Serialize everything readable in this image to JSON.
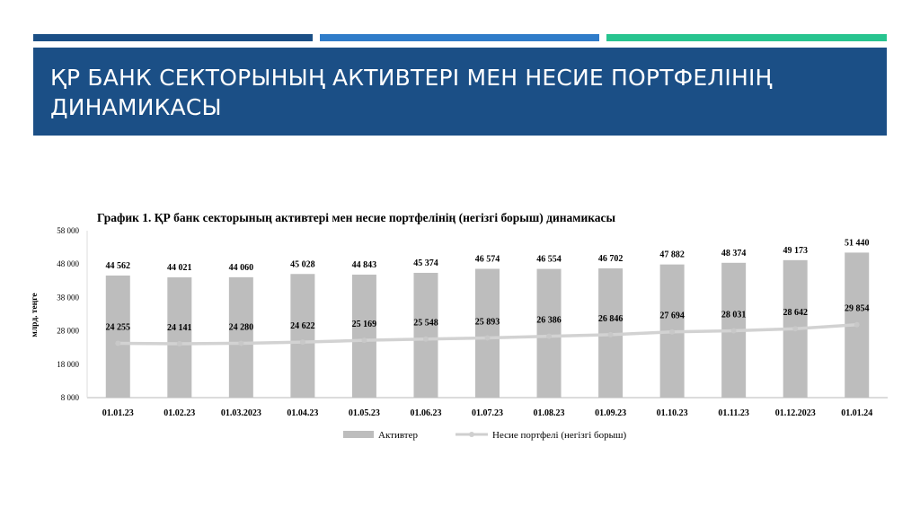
{
  "slide": {
    "title": "ҚР БАНК СЕКТОРЫНЫҢ АКТИВТЕРІ МЕН НЕСИЕ ПОРТФЕЛІНІҢ ДИНАМИКАСЫ",
    "stripe_colors": [
      "#1b4f86",
      "#2f7cc9",
      "#27c48f"
    ],
    "title_bg": "#1b4f86"
  },
  "chart_data": {
    "type": "bar",
    "title": "График 1. ҚР банк секторының активтері мен несие портфелінің (негізгі борыш) динамикасы",
    "ylabel": "млрд. теңге",
    "xlabel": "",
    "ylim": [
      8000,
      58000
    ],
    "yticks": [
      "8 000",
      "18 000",
      "28 000",
      "38 000",
      "48 000",
      "58 000"
    ],
    "categories": [
      "01.01.23",
      "01.02.23",
      "01.03.2023",
      "01.04.23",
      "01.05.23",
      "01.06.23",
      "01.07.23",
      "01.08.23",
      "01.09.23",
      "01.10.23",
      "01.11.23",
      "01.12.2023",
      "01.01.24"
    ],
    "series": [
      {
        "name": "Активтер",
        "type": "bar",
        "color": "#bdbdbd",
        "values": [
          44562,
          44021,
          44060,
          45028,
          44843,
          45374,
          46574,
          46554,
          46702,
          47882,
          48374,
          49173,
          51440
        ],
        "labels": [
          "44 562",
          "44 021",
          "44 060",
          "45 028",
          "44 843",
          "45 374",
          "46 574",
          "46 554",
          "46 702",
          "47 882",
          "48 374",
          "49 173",
          "51 440"
        ]
      },
      {
        "name": "Несие портфелі (негізгі борыш)",
        "type": "line",
        "color": "#d2d2d2",
        "values": [
          24255,
          24141,
          24280,
          24622,
          25169,
          25548,
          25893,
          26386,
          26846,
          27694,
          28031,
          28642,
          29854
        ],
        "labels": [
          "24 255",
          "24 141",
          "24 280",
          "24 622",
          "25 169",
          "25 548",
          "25 893",
          "26 386",
          "26 846",
          "27 694",
          "28 031",
          "28 642",
          "29 854"
        ]
      }
    ],
    "grid": false,
    "legend": "bottom"
  }
}
